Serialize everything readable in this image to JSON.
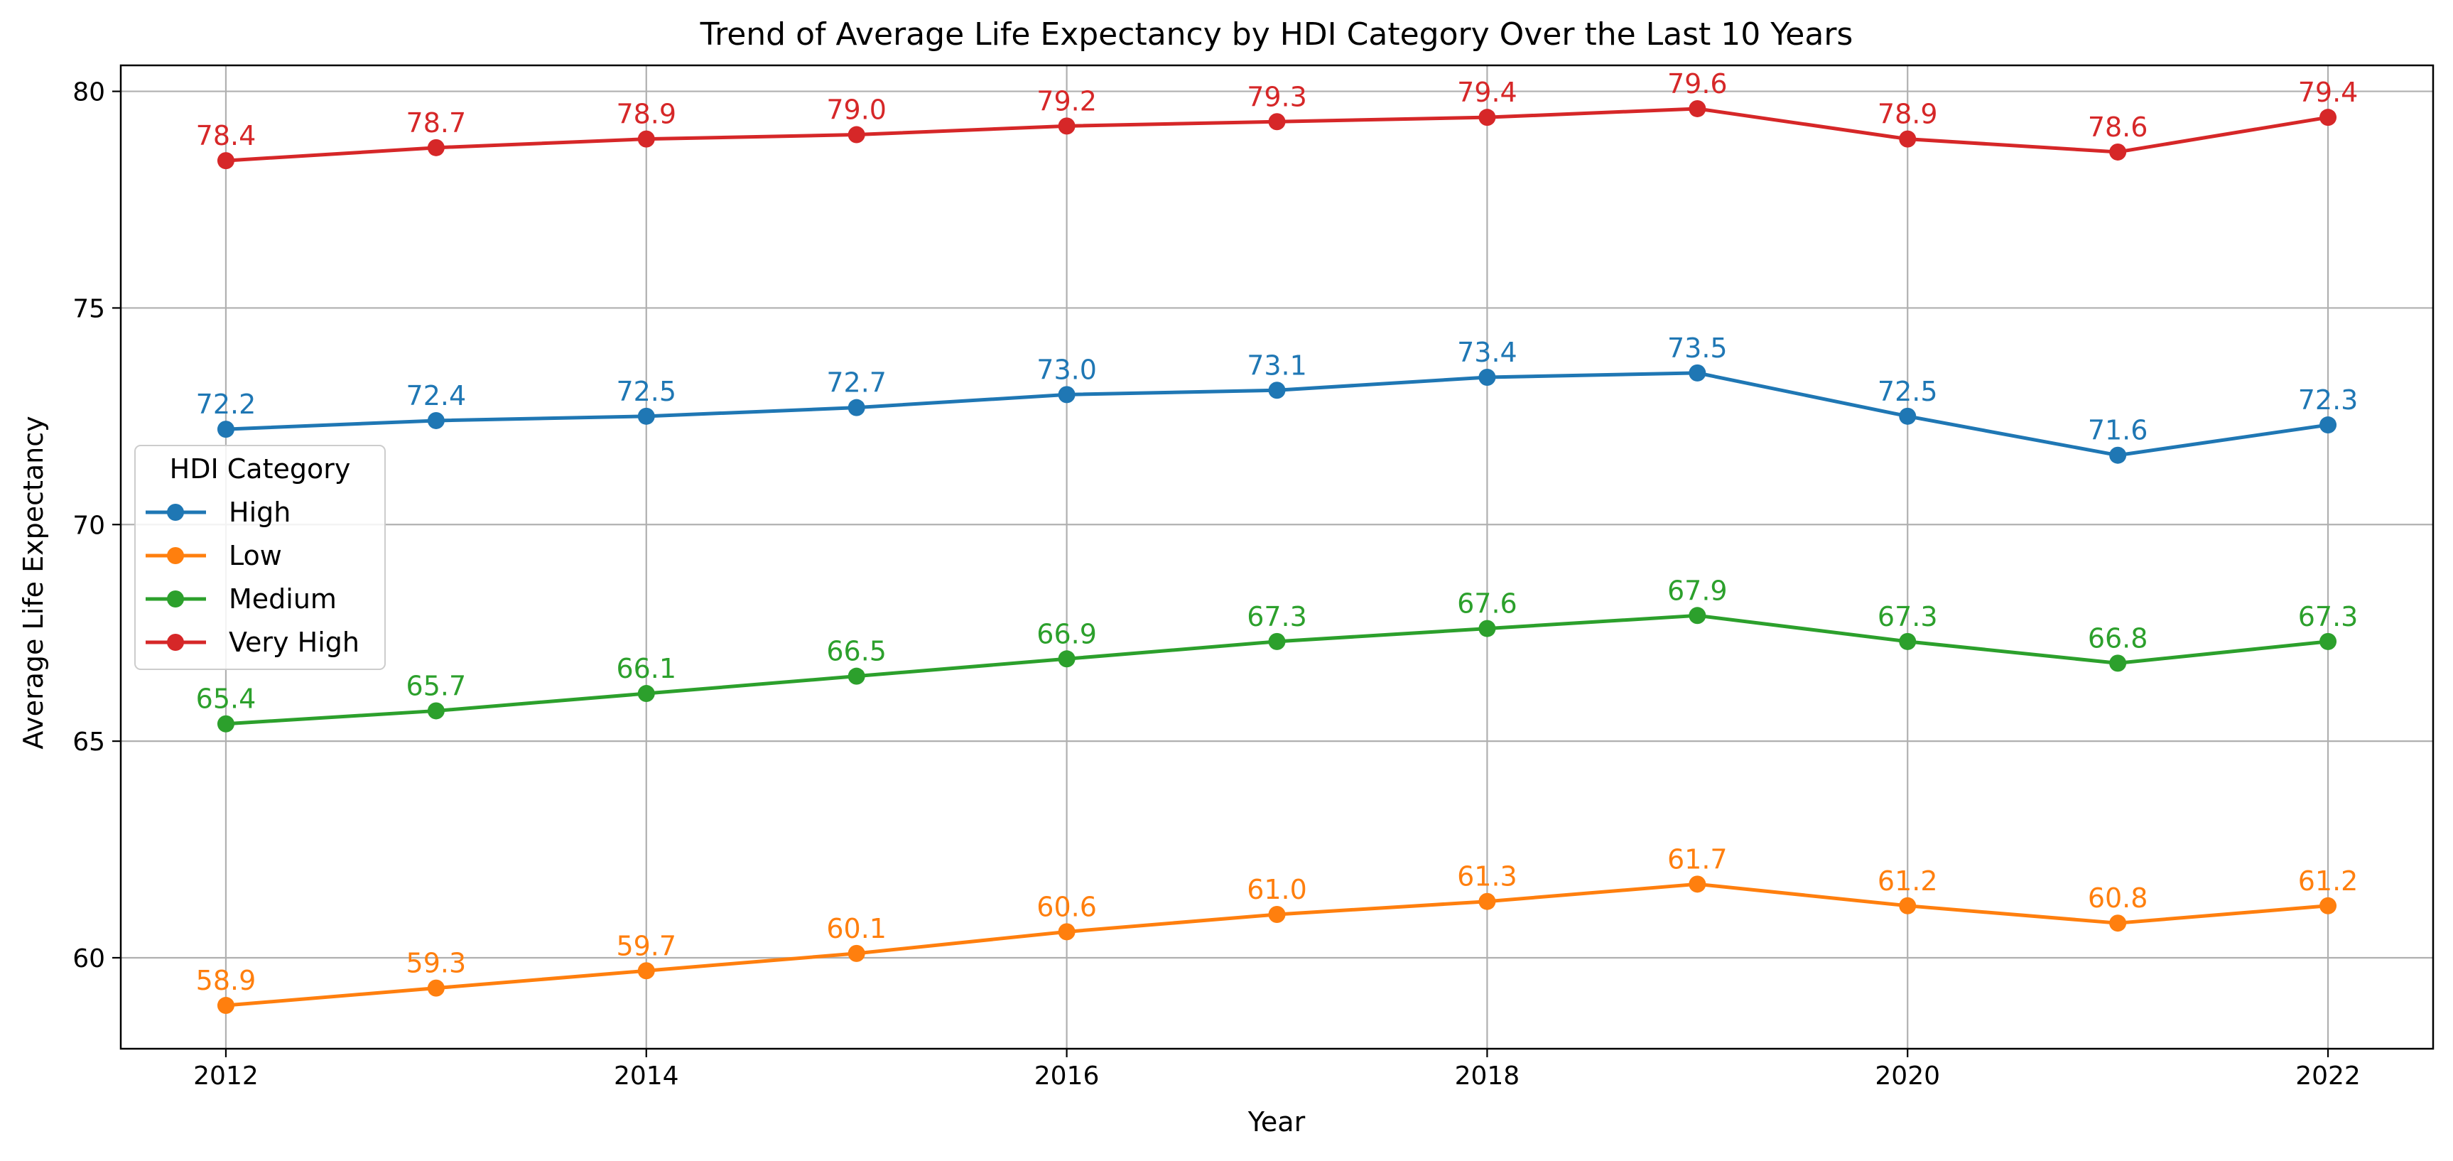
{
  "chart_data": {
    "type": "line",
    "title": "Trend of Average Life Expectancy by HDI Category Over the Last 10 Years",
    "xlabel": "Year",
    "ylabel": "Average Life Expectancy",
    "x": [
      2012,
      2013,
      2014,
      2015,
      2016,
      2017,
      2018,
      2019,
      2020,
      2021,
      2022
    ],
    "xlim": [
      2011.5,
      2022.5
    ],
    "ylim": [
      57.9,
      80.6
    ],
    "xticks": [
      2012,
      2014,
      2016,
      2018,
      2020,
      2022
    ],
    "yticks": [
      60,
      65,
      70,
      75,
      80
    ],
    "grid": true,
    "legend": {
      "title": "HDI Category",
      "placement": "center-left"
    },
    "series": [
      {
        "name": "High",
        "color": "#1f77b4",
        "values": [
          72.2,
          72.4,
          72.5,
          72.7,
          73.0,
          73.1,
          73.4,
          73.5,
          72.5,
          71.6,
          72.3
        ]
      },
      {
        "name": "Low",
        "color": "#ff7f0e",
        "values": [
          58.9,
          59.3,
          59.7,
          60.1,
          60.6,
          61.0,
          61.3,
          61.7,
          61.2,
          60.8,
          61.2
        ]
      },
      {
        "name": "Medium",
        "color": "#2ca02c",
        "values": [
          65.4,
          65.7,
          66.1,
          66.5,
          66.9,
          67.3,
          67.6,
          67.9,
          67.3,
          66.8,
          67.3
        ]
      },
      {
        "name": "Very High",
        "color": "#d62728",
        "values": [
          78.4,
          78.7,
          78.9,
          79.0,
          79.2,
          79.3,
          79.4,
          79.6,
          78.9,
          78.6,
          79.4
        ]
      }
    ]
  }
}
